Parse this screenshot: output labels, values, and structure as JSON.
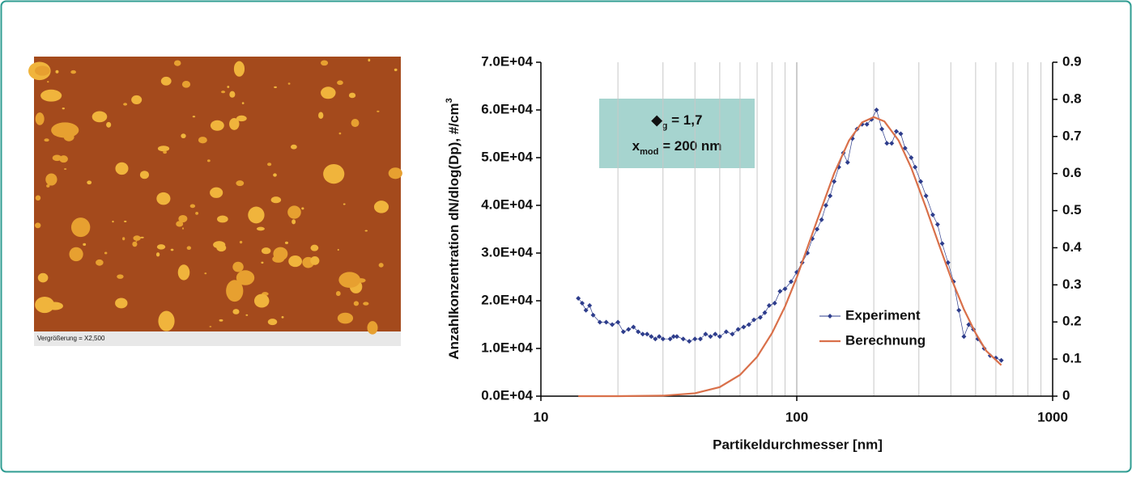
{
  "image": {
    "caption": "Vergrößerung = X2,500"
  },
  "chart_data": {
    "type": "line",
    "x_label": "Partikeldurchmesser [nm]",
    "y_label": "Anzahlkonzentration dN/dlog(Dp),  #/cm",
    "y_label_sup": "3",
    "annotation": [
      {
        "text": "◆",
        "sub": "g",
        "rest": " = 1,7"
      },
      {
        "text": "x",
        "sub": "mod",
        "rest": " = 200 nm"
      }
    ],
    "xscale": "log",
    "xlim": [
      10,
      1000
    ],
    "xticks": [
      10,
      100,
      1000
    ],
    "xminor": [
      20,
      30,
      40,
      50,
      60,
      70,
      80,
      90,
      200,
      300,
      400,
      500,
      600,
      700,
      800,
      900
    ],
    "ylim": [
      0,
      70000
    ],
    "yticks": [
      {
        "value": 0,
        "label": "0.0E+04"
      },
      {
        "value": 10000,
        "label": "1.0E+04"
      },
      {
        "value": 20000,
        "label": "2.0E+04"
      },
      {
        "value": 30000,
        "label": "3.0E+04"
      },
      {
        "value": 40000,
        "label": "4.0E+04"
      },
      {
        "value": 50000,
        "label": "5.0E+04"
      },
      {
        "value": 60000,
        "label": "6.0E+04"
      },
      {
        "value": 70000,
        "label": "7.0E+04"
      }
    ],
    "y2lim": [
      0,
      0.9
    ],
    "y2ticks": [
      0,
      0.1,
      0.2,
      0.3,
      0.4,
      0.5,
      0.6,
      0.7,
      0.8,
      0.9
    ],
    "grid": "x",
    "legend": "lower right",
    "series": [
      {
        "name": "Experiment",
        "color": "#2e3d8c",
        "marker": "diamond",
        "x": [
          14,
          14.5,
          15,
          15.5,
          16,
          17,
          18,
          19,
          20,
          21,
          22,
          23,
          24,
          25,
          26,
          27,
          28,
          29,
          30,
          32,
          33,
          34,
          36,
          38,
          40,
          42,
          44,
          46,
          48,
          50,
          53,
          56,
          59,
          62,
          65,
          68,
          72,
          75,
          78,
          82,
          86,
          90,
          95,
          100,
          105,
          110,
          115,
          120,
          125,
          130,
          135,
          140,
          146,
          152,
          158,
          165,
          172,
          180,
          188,
          196,
          205,
          215,
          225,
          235,
          245,
          255,
          265,
          280,
          290,
          305,
          320,
          340,
          355,
          370,
          390,
          410,
          430,
          450,
          470,
          490,
          510,
          540,
          570,
          600,
          630
        ],
        "values": [
          20500,
          19500,
          18000,
          19000,
          17000,
          15500,
          15500,
          15000,
          15500,
          13500,
          14000,
          14500,
          13500,
          13000,
          13000,
          12500,
          12000,
          12500,
          12000,
          12000,
          12500,
          12500,
          12000,
          11500,
          12000,
          12000,
          13000,
          12500,
          13000,
          12500,
          13500,
          13000,
          14000,
          14500,
          15000,
          16000,
          16500,
          17500,
          19000,
          19500,
          22000,
          22500,
          24000,
          26000,
          28000,
          30000,
          33000,
          35000,
          37000,
          40000,
          42000,
          45000,
          48000,
          51000,
          49000,
          54000,
          56000,
          57000,
          57000,
          58000,
          60000,
          56000,
          53000,
          53000,
          55500,
          55000,
          52000,
          50000,
          48000,
          45000,
          42000,
          38000,
          36000,
          32000,
          28000,
          24000,
          18000,
          12500,
          15000,
          14000,
          12000,
          10000,
          8500,
          8000,
          7500
        ]
      },
      {
        "name": "Berechnung",
        "color": "#d9704a",
        "marker": "none",
        "x": [
          14,
          20,
          30,
          40,
          50,
          60,
          70,
          80,
          90,
          100,
          120,
          140,
          160,
          180,
          200,
          220,
          250,
          280,
          320,
          360,
          400,
          450,
          500,
          550,
          630
        ],
        "values": [
          0,
          0,
          100,
          600,
          1900,
          4450,
          8250,
          13200,
          18800,
          24900,
          36800,
          46700,
          53600,
          57400,
          58500,
          57600,
          53600,
          47900,
          39500,
          31700,
          24900,
          18200,
          13200,
          9500,
          6500
        ]
      }
    ]
  }
}
